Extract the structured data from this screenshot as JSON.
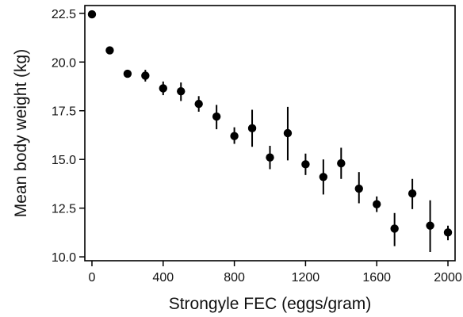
{
  "chart_data": {
    "type": "scatter",
    "title": "",
    "xlabel": "Strongyle FEC (eggs/gram)",
    "ylabel": "Mean body weight (kg)",
    "xlim": [
      -40,
      2040
    ],
    "ylim": [
      9.8,
      22.9
    ],
    "x_ticks": [
      0,
      400,
      800,
      1200,
      1600,
      2000
    ],
    "y_ticks": [
      10.0,
      12.5,
      15.0,
      17.5,
      20.0,
      22.5
    ],
    "x_tick_labels": [
      "0",
      "400",
      "800",
      "1200",
      "1600",
      "2000"
    ],
    "y_tick_labels": [
      "10.0",
      "12.5",
      "15.0",
      "17.5",
      "20.0",
      "22.5"
    ],
    "grid": false,
    "series": [
      {
        "x": [
          0,
          100,
          200,
          300,
          400,
          500,
          600,
          700,
          800,
          900,
          1000,
          1100,
          1200,
          1300,
          1400,
          1500,
          1600,
          1700,
          1800,
          1900,
          2000
        ],
        "y": [
          22.45,
          20.6,
          19.4,
          19.3,
          18.65,
          18.5,
          17.85,
          17.2,
          16.2,
          16.6,
          15.1,
          16.35,
          14.75,
          14.1,
          14.8,
          13.5,
          12.7,
          11.45,
          13.25,
          11.6,
          11.25
        ],
        "y_low": [
          22.35,
          20.5,
          19.2,
          19.0,
          18.3,
          18.0,
          17.45,
          16.55,
          15.8,
          15.65,
          14.5,
          14.95,
          14.2,
          13.2,
          14.0,
          12.75,
          12.3,
          10.55,
          12.45,
          10.25,
          10.85
        ],
        "y_high": [
          22.55,
          20.7,
          19.6,
          19.6,
          19.0,
          18.95,
          18.25,
          17.8,
          16.65,
          17.55,
          15.7,
          17.7,
          15.3,
          15.0,
          15.6,
          14.35,
          13.1,
          12.25,
          14.0,
          12.9,
          11.6
        ]
      }
    ]
  }
}
